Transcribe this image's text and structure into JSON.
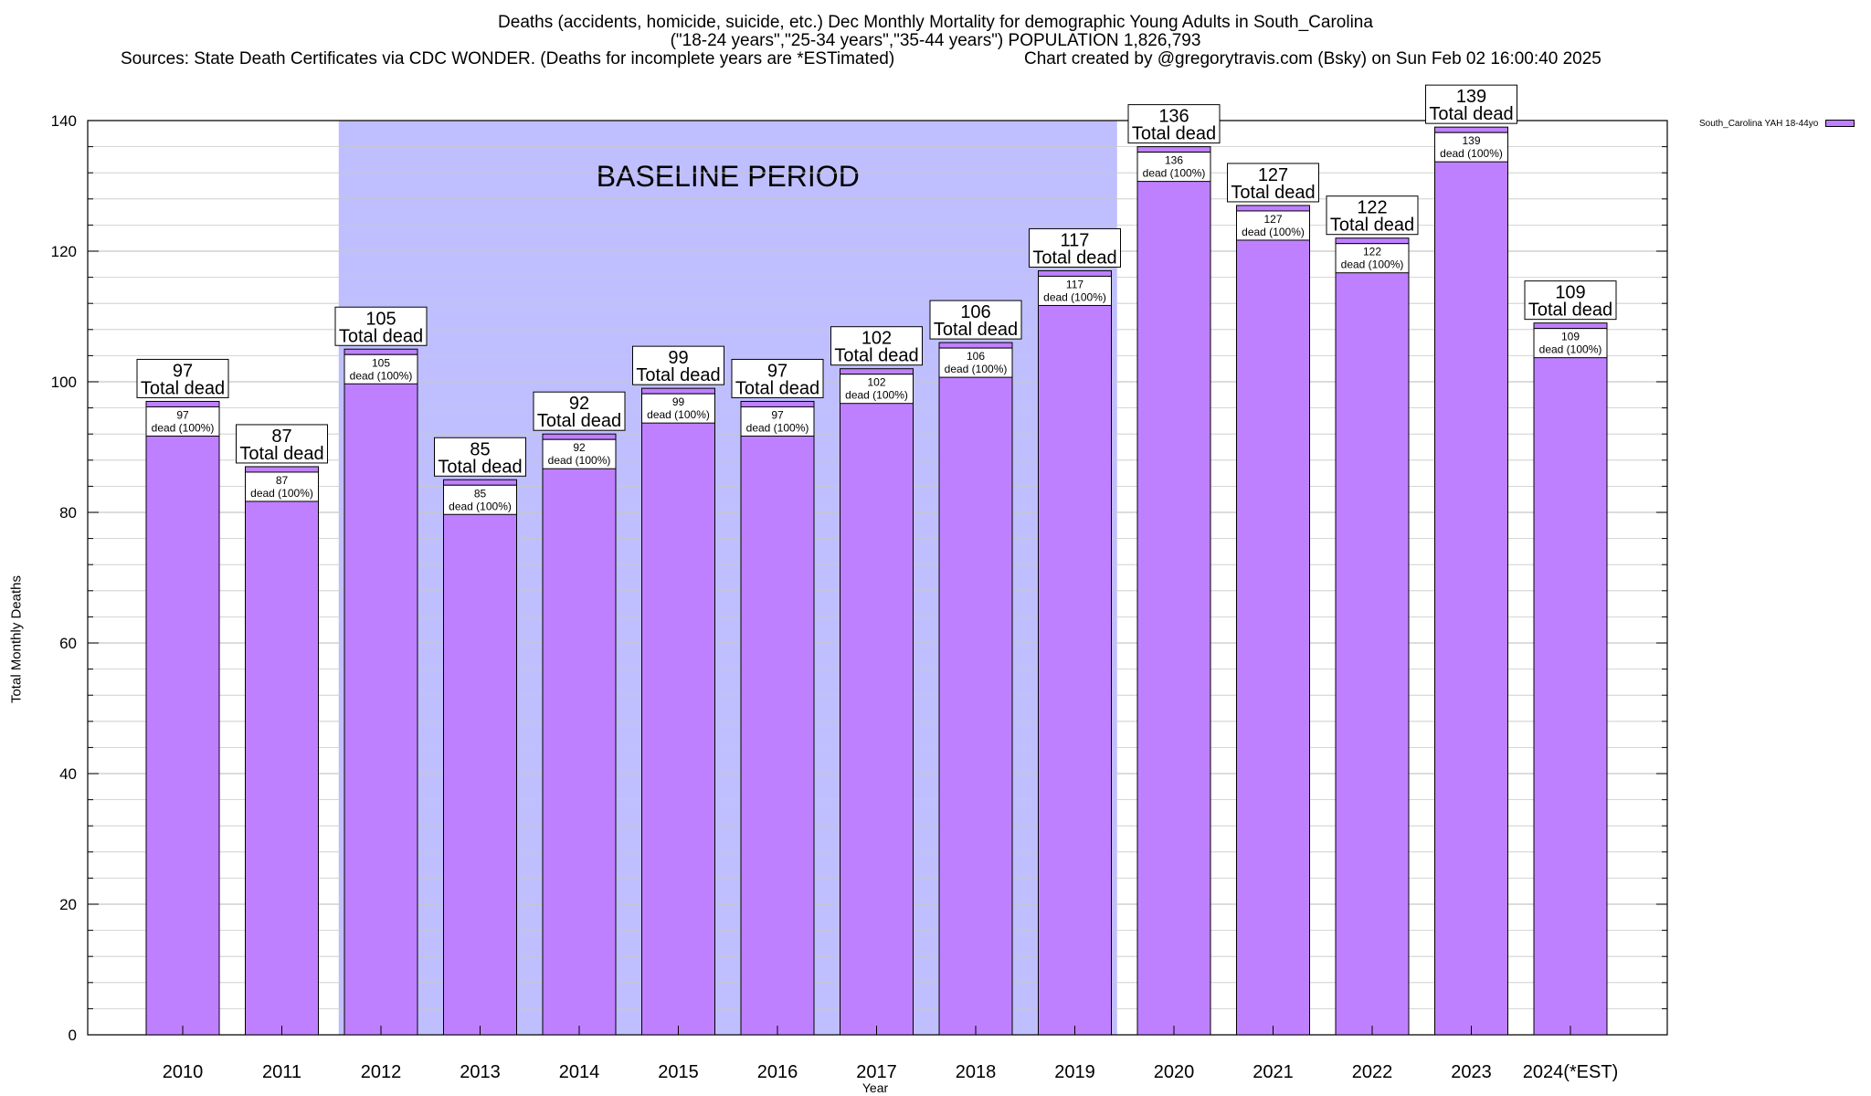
{
  "header": {
    "title_line1": "Deaths (accidents, homicide, suicide, etc.) Dec Monthly Mortality for demographic Young Adults in South_Carolina",
    "title_line2": "(\"18-24 years\",\"25-34 years\",\"35-44 years\") POPULATION 1,826,793",
    "sources": "Sources: State Death Certificates via CDC WONDER. (Deaths for incomplete years are *ESTimated)",
    "credit": "Chart created by @gregorytravis.com (Bsky) on Sun Feb 02 16:00:40 2025"
  },
  "colors": {
    "bar": "#bf80ff",
    "baseline_band": "#bfbfff",
    "grid": "#c8c8c8"
  },
  "chart_data": {
    "type": "bar",
    "title": "Deaths (accidents, homicide, suicide, etc.) Dec Monthly Mortality for demographic Young Adults in South_Carolina",
    "subtitle": "(\"18-24 years\",\"25-34 years\",\"35-44 years\") POPULATION 1,826,793",
    "xlabel": "Year",
    "ylabel": "Total Monthly Deaths",
    "ylim": [
      0,
      140
    ],
    "yticks": [
      0,
      20,
      40,
      60,
      80,
      100,
      120,
      140
    ],
    "grid": true,
    "legend_position": "top-right",
    "categories": [
      "2010",
      "2011",
      "2012",
      "2013",
      "2014",
      "2015",
      "2016",
      "2017",
      "2018",
      "2019",
      "2020",
      "2021",
      "2022",
      "2023",
      "2024(*EST)"
    ],
    "series": [
      {
        "name": "South_Carolina YAH 18-44yo",
        "values": [
          97,
          87,
          105,
          85,
          92,
          99,
          97,
          102,
          106,
          117,
          136,
          127,
          122,
          139,
          109
        ]
      }
    ],
    "top_label_suffix": "Total dead",
    "inner_label_suffix": "dead (100%)",
    "baseline_band": {
      "label": "BASELINE PERIOD",
      "from": "2012",
      "to": "2019"
    }
  }
}
